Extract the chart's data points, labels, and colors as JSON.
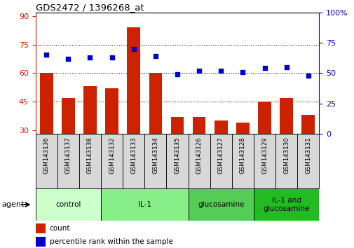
{
  "title": "GDS2472 / 1396268_at",
  "samples": [
    "GSM143136",
    "GSM143137",
    "GSM143138",
    "GSM143132",
    "GSM143133",
    "GSM143134",
    "GSM143135",
    "GSM143126",
    "GSM143127",
    "GSM143128",
    "GSM143129",
    "GSM143130",
    "GSM143131"
  ],
  "counts": [
    60,
    47,
    53,
    52,
    84,
    60,
    37,
    37,
    35,
    34,
    45,
    47,
    38
  ],
  "percentiles": [
    65,
    62,
    63,
    63,
    70,
    64,
    49,
    52,
    52,
    51,
    54,
    55,
    48
  ],
  "groups": [
    {
      "label": "control",
      "start": 0,
      "end": 3,
      "color": "#ccffcc"
    },
    {
      "label": "IL-1",
      "start": 3,
      "end": 7,
      "color": "#88ee88"
    },
    {
      "label": "glucosamine",
      "start": 7,
      "end": 10,
      "color": "#55cc55"
    },
    {
      "label": "IL-1 and\nglucosamine",
      "start": 10,
      "end": 13,
      "color": "#22bb22"
    }
  ],
  "ylim_left": [
    28,
    92
  ],
  "ylim_right": [
    0,
    100
  ],
  "yticks_left": [
    30,
    45,
    60,
    75,
    90
  ],
  "yticks_right": [
    0,
    25,
    50,
    75,
    100
  ],
  "bar_color": "#cc2200",
  "scatter_color": "#0000cc",
  "bg_color": "#ffffff",
  "label_count": "count",
  "label_percentile": "percentile rank within the sample",
  "agent_label": "agent"
}
